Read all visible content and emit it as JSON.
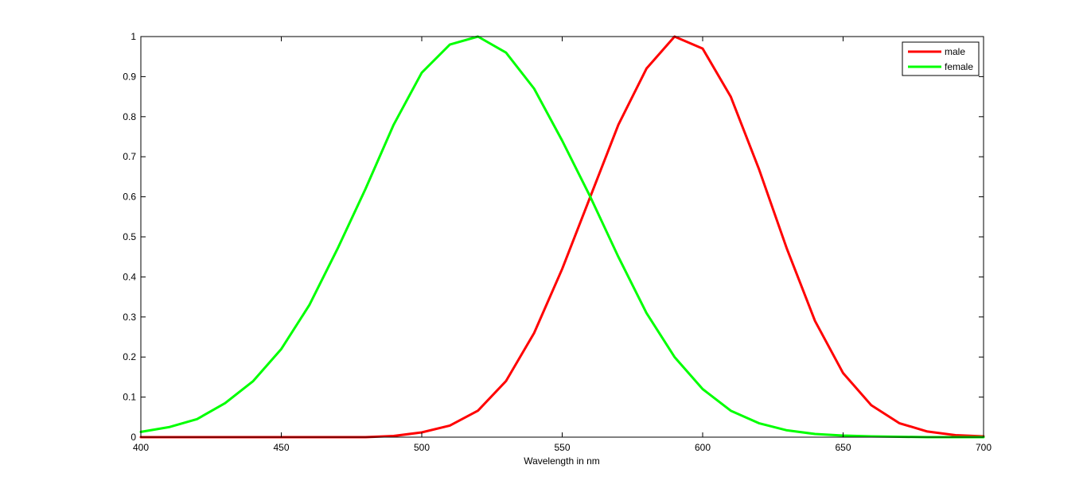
{
  "chart_data": {
    "type": "line",
    "title": "",
    "xlabel": "Wavelength in nm",
    "ylabel": "",
    "xlim": [
      400,
      700
    ],
    "ylim": [
      0,
      1
    ],
    "grid": false,
    "legend_position": "top-right",
    "x_ticks": [
      400,
      450,
      500,
      550,
      600,
      650,
      700
    ],
    "y_ticks": [
      0,
      0.1,
      0.2,
      0.3,
      0.4,
      0.5,
      0.6,
      0.7,
      0.8,
      0.9,
      1
    ],
    "x_tick_labels": [
      "400",
      "450",
      "500",
      "550",
      "600",
      "650",
      "700"
    ],
    "y_tick_labels": [
      "0",
      "0.1",
      "0.2",
      "0.3",
      "0.4",
      "0.5",
      "0.6",
      "0.7",
      "0.8",
      "0.9",
      "1"
    ],
    "x": [
      400,
      410,
      420,
      430,
      440,
      450,
      460,
      470,
      480,
      490,
      500,
      510,
      520,
      530,
      540,
      550,
      560,
      570,
      580,
      590,
      600,
      610,
      620,
      630,
      640,
      650,
      660,
      670,
      680,
      690,
      700
    ],
    "series": [
      {
        "name": "male",
        "color": "#ff0000",
        "values": [
          0.0,
          0.0,
          0.0,
          0.0,
          0.0,
          0.0,
          0.0,
          0.0,
          0.0,
          0.003,
          0.012,
          0.029,
          0.066,
          0.14,
          0.26,
          0.42,
          0.6,
          0.78,
          0.92,
          1.0,
          0.97,
          0.85,
          0.67,
          0.47,
          0.29,
          0.16,
          0.08,
          0.035,
          0.014,
          0.005,
          0.002
        ]
      },
      {
        "name": "female",
        "color": "#00ff00",
        "values": [
          0.013,
          0.025,
          0.045,
          0.085,
          0.14,
          0.22,
          0.33,
          0.47,
          0.62,
          0.78,
          0.91,
          0.98,
          1.0,
          0.96,
          0.87,
          0.74,
          0.6,
          0.45,
          0.31,
          0.2,
          0.12,
          0.066,
          0.035,
          0.017,
          0.008,
          0.004,
          0.002,
          0.001,
          0.0,
          0.0,
          0.0
        ]
      }
    ]
  }
}
